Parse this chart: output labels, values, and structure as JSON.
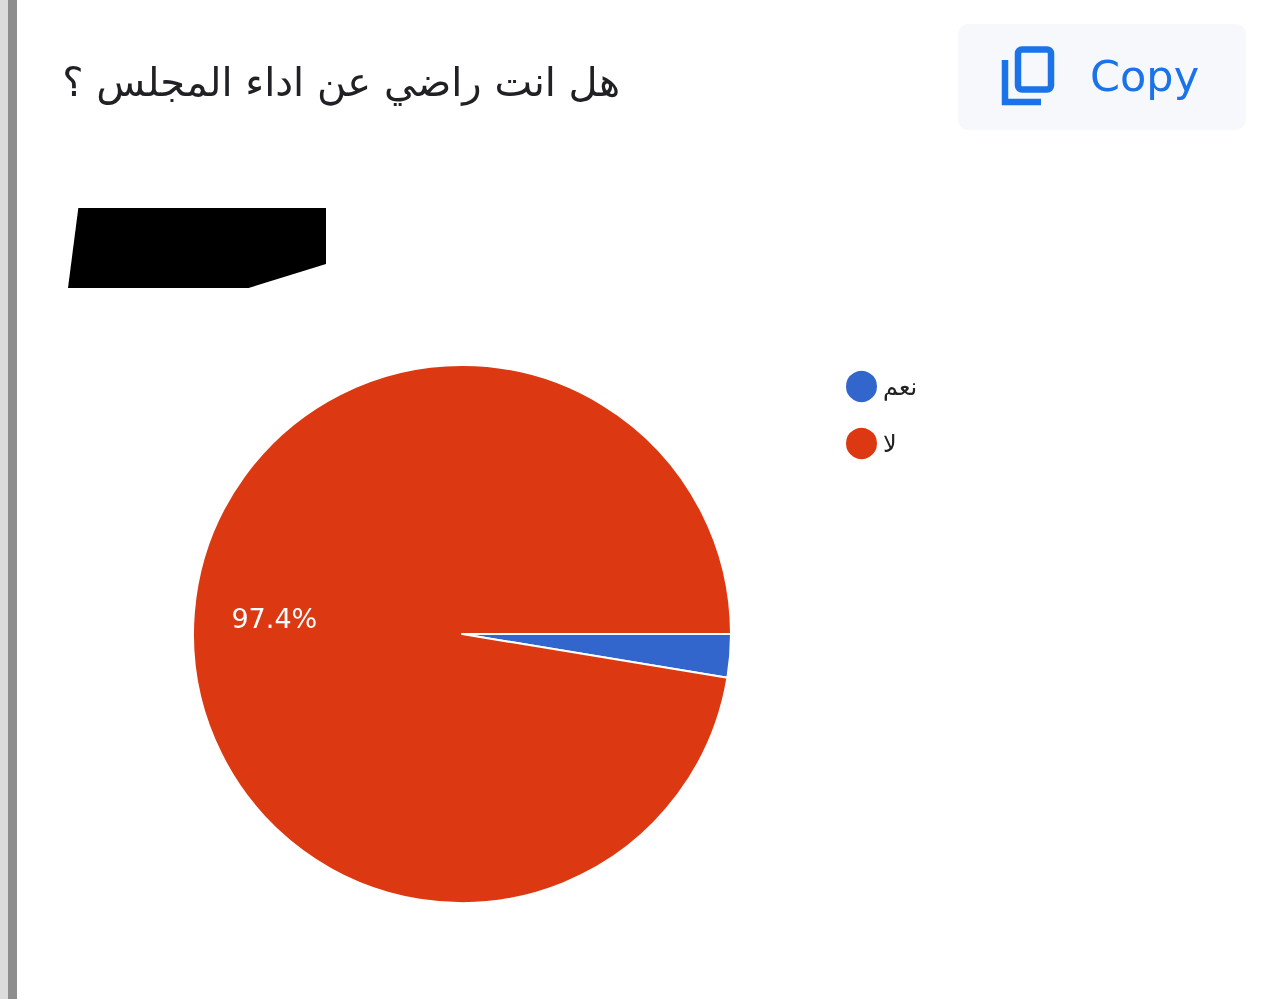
{
  "chart_data": {
    "type": "pie",
    "title": "هل انت راضي عن اداء المجلس ؟",
    "categories": [
      "نعم",
      "لا"
    ],
    "values": [
      2.6,
      97.4
    ],
    "colors": [
      "#3366cc",
      "#dc3912"
    ],
    "value_labels": [
      null,
      "97.4%"
    ],
    "legend": "top right",
    "annotations": [
      "Copy"
    ]
  }
}
